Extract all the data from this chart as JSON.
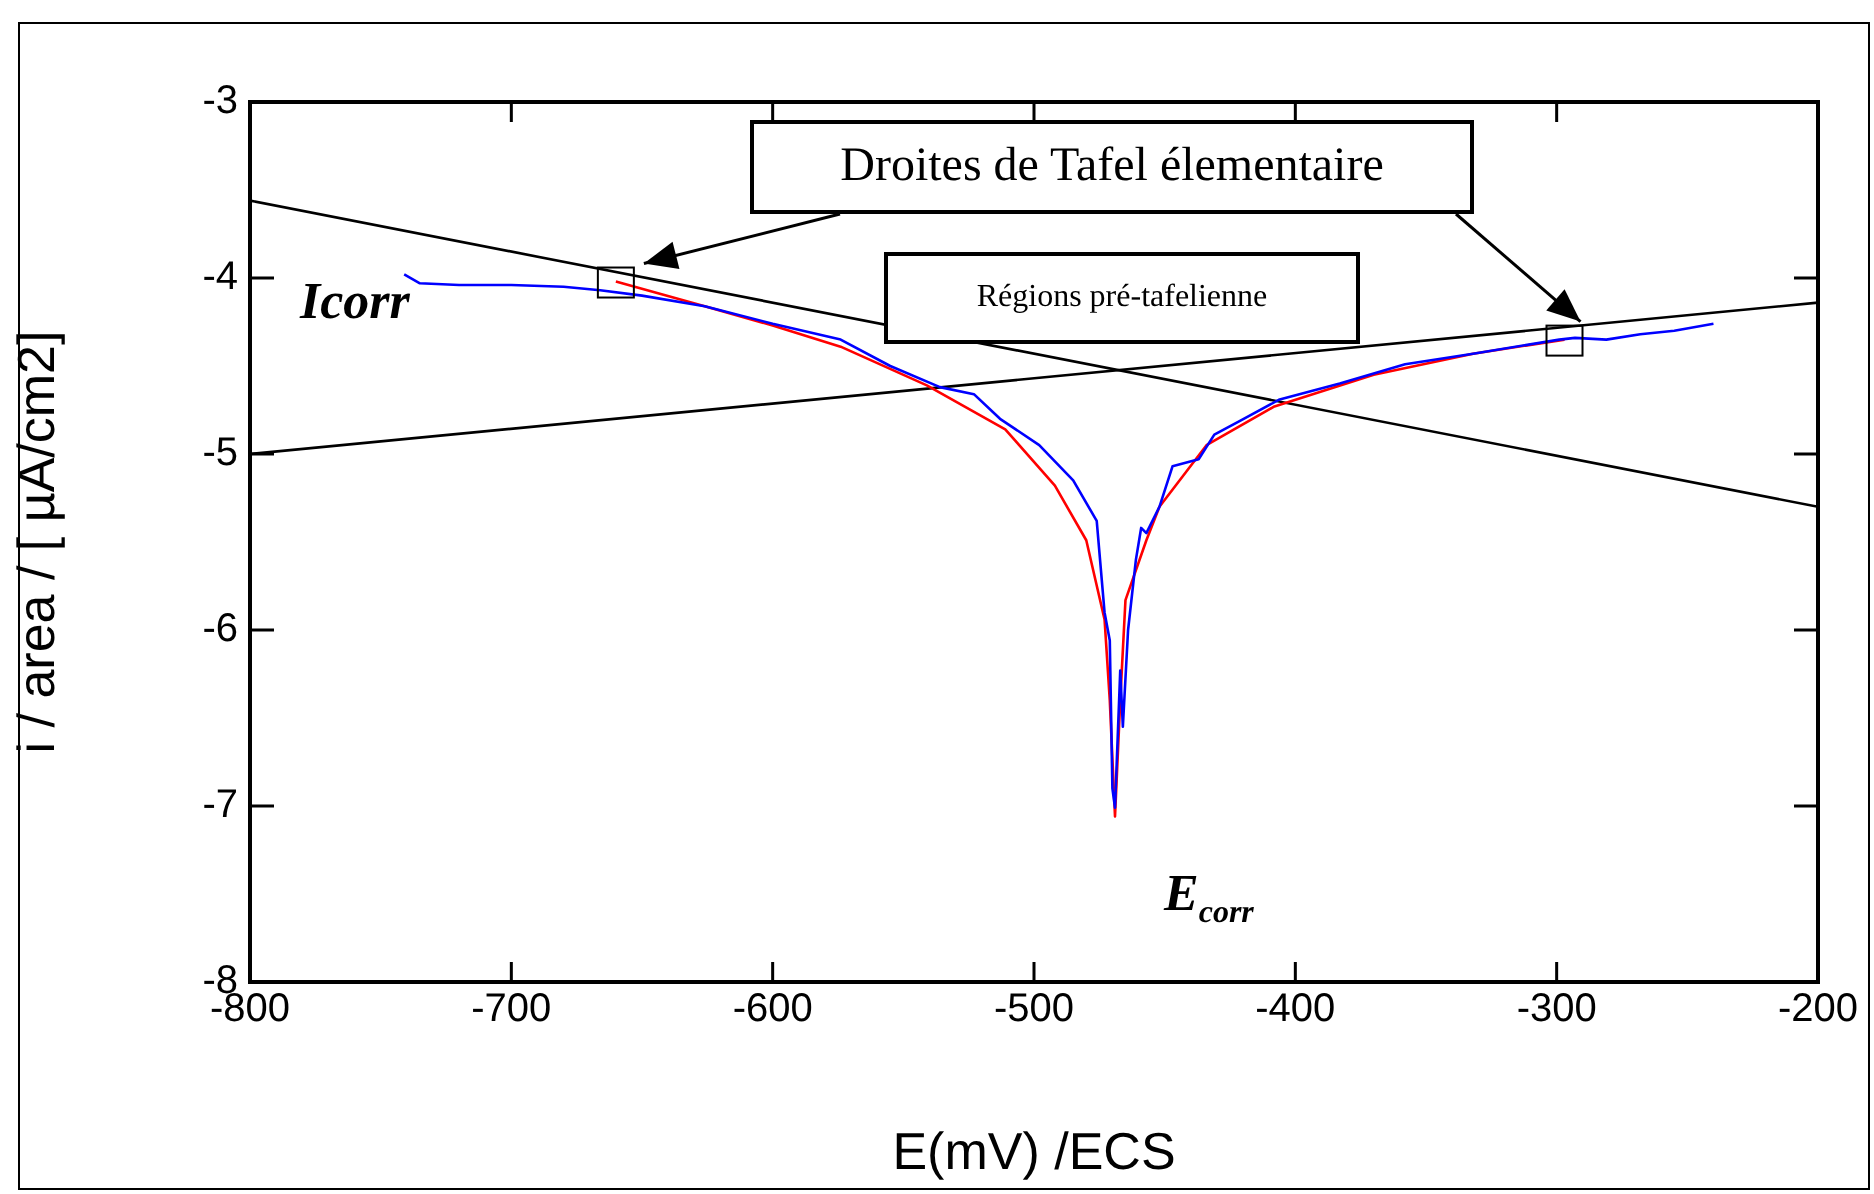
{
  "chart_data": {
    "type": "line",
    "xlabel": "E(mV) /ECS",
    "ylabel": "i / area / [ µA/cm2]",
    "xlim": [
      -800,
      -200
    ],
    "xticks": [
      -800,
      -700,
      -600,
      -500,
      -400,
      -300,
      -200
    ],
    "ylim": [
      -8,
      -3
    ],
    "yticks": [
      -8,
      -7,
      -6,
      -5,
      -4,
      -3
    ],
    "grid": false,
    "legend": false,
    "marker": "none",
    "line_style": "solid",
    "series": [
      {
        "color": "#0000ff",
        "x": [
          -741,
          -735,
          -720,
          -700,
          -680,
          -666,
          -650,
          -626,
          -600,
          -574,
          -555,
          -536,
          -523,
          -513,
          -498,
          -485,
          -476,
          -473,
          -471,
          -470,
          -469,
          -467,
          -466,
          -464,
          -461,
          -459,
          -457,
          -452,
          -447,
          -437,
          -431,
          -421,
          -406,
          -383,
          -358,
          -332,
          -299,
          -293,
          -281,
          -268,
          -255,
          -240
        ],
        "values": [
          -3.98,
          -4.03,
          -4.04,
          -4.04,
          -4.05,
          -4.07,
          -4.1,
          -4.16,
          -4.26,
          -4.35,
          -4.5,
          -4.62,
          -4.66,
          -4.8,
          -4.95,
          -5.15,
          -5.38,
          -5.9,
          -6.06,
          -6.9,
          -7.01,
          -6.23,
          -6.55,
          -6.0,
          -5.6,
          -5.42,
          -5.45,
          -5.3,
          -5.07,
          -5.03,
          -4.89,
          -4.81,
          -4.69,
          -4.6,
          -4.49,
          -4.43,
          -4.35,
          -4.34,
          -4.35,
          -4.32,
          -4.3,
          -4.26
        ]
      },
      {
        "color": "#ff0000",
        "x": [
          -660,
          -626,
          -600,
          -574,
          -541,
          -511,
          -492,
          -480,
          -473,
          -471,
          -469,
          -467,
          -465,
          -457,
          -452,
          -434,
          -408,
          -370,
          -332,
          -297
        ],
        "values": [
          -4.02,
          -4.16,
          -4.27,
          -4.39,
          -4.61,
          -4.86,
          -5.18,
          -5.49,
          -5.94,
          -6.4,
          -7.06,
          -6.4,
          -5.83,
          -5.49,
          -5.3,
          -4.95,
          -4.73,
          -4.55,
          -4.43,
          -4.35
        ]
      },
      {
        "color": "#000000",
        "x": [
          -800,
          -200
        ],
        "values": [
          -3.56,
          -5.3
        ]
      },
      {
        "color": "#000000",
        "x": [
          -800,
          -200
        ],
        "values": [
          -5.0,
          -4.14
        ]
      }
    ],
    "annotations": [
      "Droites de Tafel élementaire",
      "Régions pré-tafelienne",
      "Icorr",
      "E$_{corr}$"
    ]
  }
}
